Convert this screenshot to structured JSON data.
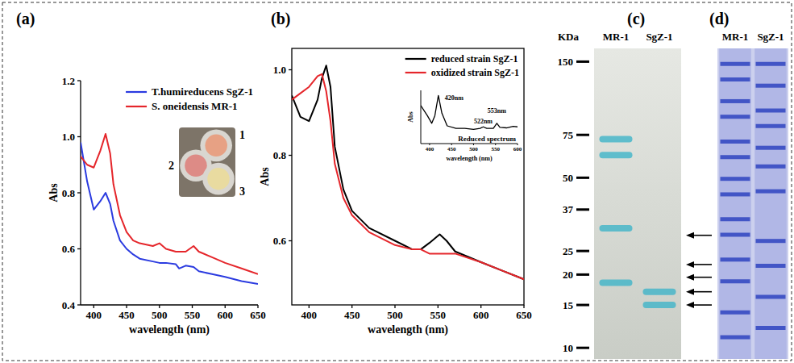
{
  "chart_data": [
    {
      "type": "line",
      "title": "(a)",
      "x": [
        380,
        390,
        400,
        410,
        418,
        425,
        430,
        440,
        450,
        460,
        470,
        490,
        500,
        510,
        525,
        530,
        540,
        552,
        560,
        580,
        600,
        625,
        650
      ],
      "series": [
        {
          "name": "T.humireducens SgZ-1",
          "color": "#2b3be0",
          "values": [
            0.98,
            0.84,
            0.74,
            0.77,
            0.8,
            0.76,
            0.7,
            0.63,
            0.6,
            0.58,
            0.565,
            0.555,
            0.55,
            0.55,
            0.545,
            0.53,
            0.54,
            0.535,
            0.52,
            0.51,
            0.5,
            0.485,
            0.475
          ]
        },
        {
          "name": "S. oneidensis MR-1",
          "color": "#e5262b",
          "values": [
            0.93,
            0.9,
            0.89,
            0.95,
            1.01,
            0.94,
            0.83,
            0.72,
            0.66,
            0.63,
            0.62,
            0.61,
            0.62,
            0.6,
            0.59,
            0.59,
            0.59,
            0.61,
            0.59,
            0.57,
            0.55,
            0.53,
            0.51
          ]
        }
      ],
      "xlabel": "wavelength (nm)",
      "ylabel": "Abs",
      "xlim": [
        380,
        650
      ],
      "xticks": [
        400,
        450,
        500,
        550,
        600,
        650
      ],
      "ylim": [
        0.4,
        1.2
      ],
      "yticks": [
        0.4,
        0.6,
        0.8,
        {
          "value": 1,
          "label": "1.0"
        },
        1.2
      ],
      "legend": "upper right",
      "inset_labels": [
        "1",
        "2",
        "3"
      ]
    },
    {
      "type": "line",
      "title": "(b)",
      "x": [
        380,
        390,
        400,
        410,
        415,
        420,
        425,
        430,
        440,
        450,
        470,
        500,
        520,
        530,
        540,
        552,
        560,
        570,
        600,
        625,
        650
      ],
      "series": [
        {
          "name": "reduced strain SgZ-1",
          "color": "#000000",
          "values": [
            0.94,
            0.89,
            0.88,
            0.93,
            0.98,
            1.01,
            0.96,
            0.82,
            0.72,
            0.67,
            0.63,
            0.6,
            0.58,
            0.58,
            0.595,
            0.615,
            0.6,
            0.575,
            0.55,
            0.53,
            0.51
          ]
        },
        {
          "name": "oxidized strain SgZ-1",
          "color": "#e5262b",
          "values": [
            0.93,
            0.945,
            0.96,
            0.985,
            0.99,
            0.95,
            0.88,
            0.78,
            0.7,
            0.66,
            0.62,
            0.59,
            0.58,
            0.58,
            0.57,
            0.57,
            0.57,
            0.57,
            0.55,
            0.53,
            0.51
          ]
        }
      ],
      "xlabel": "wavelength (nm)",
      "ylabel": "Abs",
      "xlim": [
        380,
        650
      ],
      "xticks": [
        400,
        450,
        500,
        550,
        600,
        650
      ],
      "ylim": [
        0.45,
        1.05
      ],
      "yticks": [
        0.6,
        0.8,
        {
          "value": 1,
          "label": "1.0"
        }
      ],
      "legend": "upper right"
    },
    {
      "type": "line",
      "title": "Reduced spectrum",
      "x": [
        380,
        395,
        405,
        412,
        420,
        428,
        440,
        460,
        480,
        500,
        515,
        522,
        530,
        545,
        553,
        560,
        575,
        590,
        600
      ],
      "series": [
        {
          "color": "#000000",
          "values": [
            0.75,
            0.55,
            0.4,
            0.55,
            0.95,
            0.6,
            0.35,
            0.3,
            0.3,
            0.28,
            0.3,
            0.33,
            0.3,
            0.3,
            0.4,
            0.32,
            0.31,
            0.34,
            0.33
          ]
        }
      ],
      "xlabel": "wavelength (nm)",
      "ylabel": "Abs",
      "xlim": [
        380,
        600
      ],
      "xticks": [
        400,
        450,
        500,
        550,
        600
      ],
      "ylim": [
        0,
        1.05
      ],
      "tick_labels": "x",
      "annotations": [
        {
          "text": "420nm",
          "x": 420
        },
        {
          "text": "522nm",
          "x": 522
        },
        {
          "text": "553nm",
          "x": 553
        }
      ]
    }
  ],
  "gel_c": {
    "label": "(c)",
    "unit": "KDa",
    "lanes": [
      {
        "name": "MR-1",
        "bands": [
          72,
          62,
          31,
          18.5
        ]
      },
      {
        "name": "SgZ-1",
        "bands": [
          17,
          15
        ]
      }
    ],
    "markers": [
      150,
      75,
      50,
      37,
      25,
      20,
      15,
      10
    ],
    "ylim": [
      9,
      170
    ],
    "log": true,
    "arrows": [
      29,
      22,
      19.5,
      17,
      15
    ]
  },
  "gel_d": {
    "label": "(d)",
    "lanes": [
      {
        "name": "MR-1",
        "bands": [
          0.05,
          0.1,
          0.17,
          0.22,
          0.3,
          0.35,
          0.42,
          0.47,
          0.55,
          0.6,
          0.68,
          0.75,
          0.85,
          0.93
        ]
      },
      {
        "name": "SgZ-1",
        "bands": [
          0.05,
          0.12,
          0.2,
          0.25,
          0.32,
          0.38,
          0.46,
          0.62,
          0.7,
          0.8,
          0.9
        ]
      }
    ]
  }
}
